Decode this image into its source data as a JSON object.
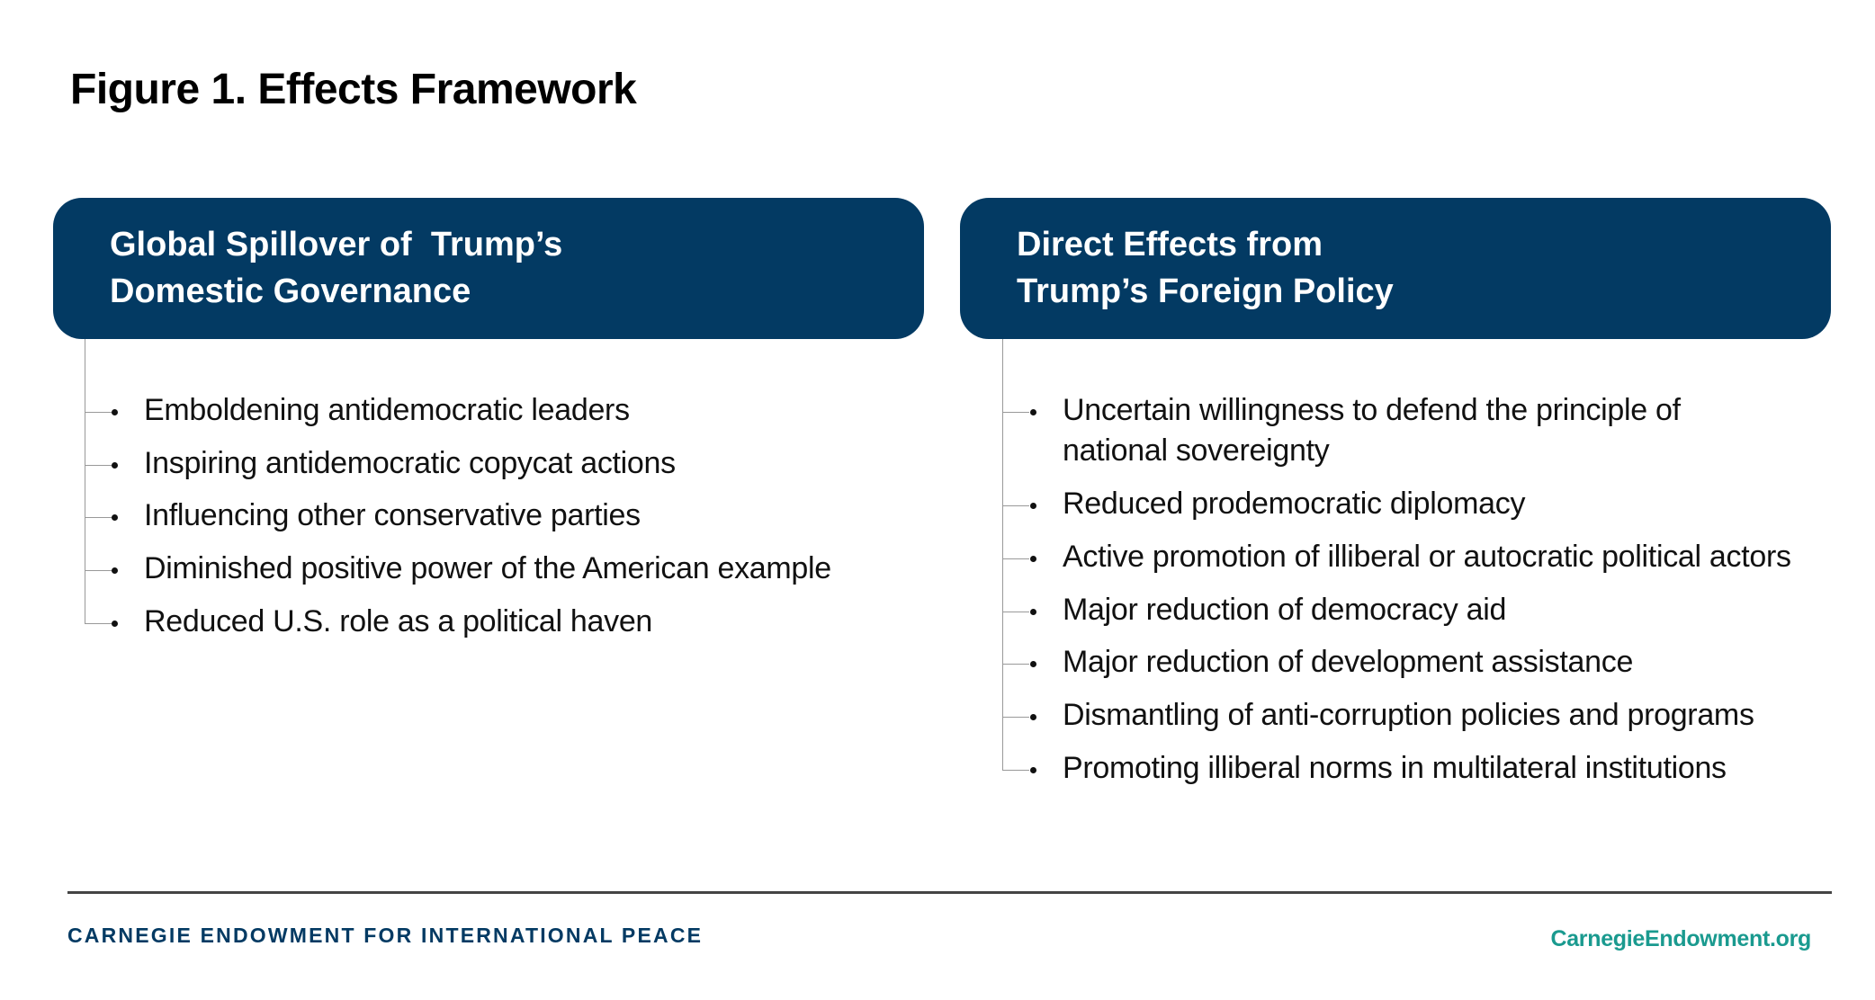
{
  "title": "Figure 1. Effects Framework",
  "colors": {
    "box": "#033a63",
    "footer_brand": "#033a63",
    "footer_link": "#1a9a8f"
  },
  "columns": [
    {
      "heading": [
        "Global Spillover of  Trump’s",
        "Domestic Governance"
      ],
      "items": [
        "Emboldening antidemocratic leaders",
        "Inspiring antidemocratic copycat actions",
        "Influencing other conservative parties",
        "Diminished positive power of the American example",
        "Reduced U.S. role as a political haven"
      ]
    },
    {
      "heading": [
        "Direct Effects from",
        "Trump’s Foreign Policy"
      ],
      "items": [
        "Uncertain willingness to defend the principle of national sovereignty",
        "Reduced prodemocratic diplomacy",
        "Active promotion of illiberal or autocratic political actors",
        "Major reduction of democracy aid",
        "Major reduction of development assistance",
        "Dismantling of anti-corruption policies and programs",
        "Promoting illiberal norms in multilateral institutions"
      ]
    }
  ],
  "footer": {
    "organization": "CARNEGIE ENDOWMENT FOR INTERNATIONAL PEACE",
    "website": "CarnegieEndowment.org"
  }
}
